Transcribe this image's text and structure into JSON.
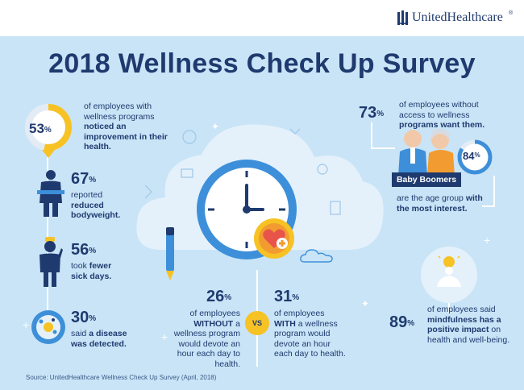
{
  "brand": {
    "name": "UnitedHealthcare",
    "trademark": "®"
  },
  "title": "2018 Wellness Check Up Survey",
  "stats": {
    "noticed": {
      "value": "53",
      "unit": "%",
      "text_a": "of employees with wellness programs ",
      "text_b": "noticed an improvement in their health.",
      "ring_fraction": 0.53
    },
    "weight": {
      "value": "67",
      "unit": "%",
      "text_a": "reported ",
      "text_b": "reduced bodyweight."
    },
    "sick": {
      "value": "56",
      "unit": "%",
      "text_a": "took ",
      "text_b": "fewer sick days."
    },
    "disease": {
      "value": "30",
      "unit": "%",
      "text_a": "said ",
      "text_b": "a disease was detected."
    },
    "without_access": {
      "value": "73",
      "unit": "%",
      "text_a": "of employees without access to wellness ",
      "text_b": "programs want them."
    },
    "boomers": {
      "value": "84",
      "unit": "%",
      "badge": "Baby Boomers",
      "text_a": "are the age group ",
      "text_b": "with the most interest.",
      "ring_fraction": 0.84
    },
    "without_hour": {
      "value": "26",
      "unit": "%",
      "text_a": "of employees ",
      "text_b": "WITHOUT",
      "text_c": " a wellness program would devote an hour each day to health."
    },
    "with_hour": {
      "value": "31",
      "unit": "%",
      "text_a": "of employees ",
      "text_b": "WITH",
      "text_c": " a wellness program would devote an hour each day to health."
    },
    "vs": "VS",
    "mindful": {
      "value": "89",
      "unit": "%",
      "text_a": "of employees said ",
      "text_b": "mindfulness has a positive impact",
      "text_c": " on health and well-being."
    }
  },
  "source": "Source: UnitedHealthcare Wellness Check Up Survey (April, 2018)",
  "colors": {
    "navy": "#1f3a6e",
    "light_blue": "#c9e4f7",
    "mid_blue": "#3d8fd9",
    "yellow": "#f7c223",
    "orange": "#f29b30",
    "red": "#e8534a"
  }
}
